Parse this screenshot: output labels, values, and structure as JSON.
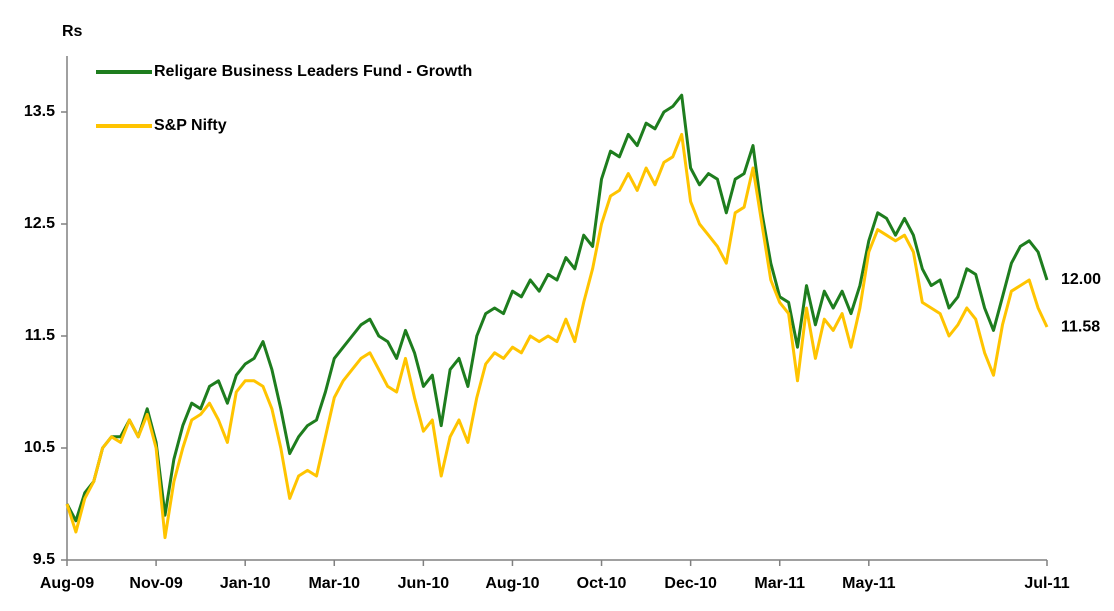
{
  "chart_data": {
    "type": "line",
    "ylabel": "Rs",
    "x": [
      0,
      1,
      2,
      3,
      4,
      5,
      6,
      7,
      8,
      9,
      10,
      11,
      12,
      13,
      14,
      15,
      16,
      17,
      18,
      19,
      20,
      21,
      22,
      23,
      24,
      25,
      26,
      27,
      28,
      29,
      30,
      31,
      32,
      33,
      34,
      35,
      36,
      37,
      38,
      39,
      40,
      41,
      42,
      43,
      44,
      45,
      46,
      47,
      48,
      49,
      50,
      51,
      52,
      53,
      54,
      55,
      56,
      57,
      58,
      59,
      60,
      61,
      62,
      63,
      64,
      65,
      66,
      67,
      68,
      69,
      70,
      71,
      72,
      73,
      74,
      75,
      76,
      77,
      78,
      79,
      80,
      81,
      82,
      83,
      84,
      85,
      86,
      87,
      88,
      89,
      90,
      91,
      92,
      93,
      94,
      95,
      96,
      97,
      98,
      99,
      100,
      101,
      102,
      103,
      104,
      105,
      106,
      107,
      108,
      109,
      110
    ],
    "xlim": [
      0,
      110
    ],
    "xticks": [
      {
        "value": 0,
        "label": "Aug-09"
      },
      {
        "value": 10,
        "label": "Nov-09"
      },
      {
        "value": 20,
        "label": "Jan-10"
      },
      {
        "value": 30,
        "label": "Mar-10"
      },
      {
        "value": 40,
        "label": "Jun-10"
      },
      {
        "value": 50,
        "label": "Aug-10"
      },
      {
        "value": 60,
        "label": "Oct-10"
      },
      {
        "value": 70,
        "label": "Dec-10"
      },
      {
        "value": 80,
        "label": "Mar-11"
      },
      {
        "value": 90,
        "label": "May-11"
      },
      {
        "value": 110,
        "label": "Jul-11"
      }
    ],
    "ylim": [
      9.5,
      14.0
    ],
    "yticks": [
      9.5,
      10.5,
      11.5,
      12.5,
      13.5
    ],
    "grid": false,
    "legend": "upper left",
    "series": [
      {
        "name": "Religare Business Leaders Fund - Growth",
        "color": "#1e7d1e",
        "values": [
          10.0,
          9.85,
          10.1,
          10.2,
          10.5,
          10.6,
          10.6,
          10.75,
          10.6,
          10.85,
          10.55,
          9.9,
          10.4,
          10.7,
          10.9,
          10.85,
          11.05,
          11.1,
          10.9,
          11.15,
          11.25,
          11.3,
          11.45,
          11.2,
          10.85,
          10.45,
          10.6,
          10.7,
          10.75,
          11.0,
          11.3,
          11.4,
          11.5,
          11.6,
          11.65,
          11.5,
          11.45,
          11.3,
          11.55,
          11.35,
          11.05,
          11.15,
          10.7,
          11.2,
          11.3,
          11.05,
          11.5,
          11.7,
          11.75,
          11.7,
          11.9,
          11.85,
          12.0,
          11.9,
          12.05,
          12.0,
          12.2,
          12.1,
          12.4,
          12.3,
          12.9,
          13.15,
          13.1,
          13.3,
          13.2,
          13.4,
          13.35,
          13.5,
          13.55,
          13.65,
          13.0,
          12.85,
          12.95,
          12.9,
          12.6,
          12.9,
          12.95,
          13.2,
          12.6,
          12.15,
          11.85,
          11.8,
          11.4,
          11.95,
          11.6,
          11.9,
          11.75,
          11.9,
          11.7,
          11.95,
          12.35,
          12.6,
          12.55,
          12.4,
          12.55,
          12.4,
          12.1,
          11.95,
          12.0,
          11.75,
          11.85,
          12.1,
          12.05,
          11.75,
          11.55,
          11.85,
          12.15,
          12.3,
          12.35,
          12.25,
          12.0
        ],
        "value_labels": [
          null,
          null,
          null,
          null,
          null,
          null,
          null,
          null,
          null,
          null,
          null,
          null,
          null,
          null,
          null,
          null,
          null,
          null,
          null,
          null,
          null,
          null,
          null,
          null,
          null,
          null,
          null,
          null,
          null,
          null,
          null,
          null,
          null,
          null,
          null,
          null,
          null,
          null,
          null,
          null,
          null,
          null,
          null,
          null,
          null,
          null,
          null,
          null,
          null,
          null,
          null,
          null,
          null,
          null,
          null,
          null,
          null,
          null,
          null,
          null,
          null,
          null,
          null,
          null,
          null,
          null,
          null,
          null,
          null,
          null,
          null,
          null,
          null,
          null,
          null,
          null,
          null,
          null,
          null,
          null,
          null,
          null,
          null,
          null,
          null,
          null,
          null,
          null,
          null,
          null,
          null,
          null,
          null,
          null,
          null,
          null,
          null,
          null,
          null,
          null,
          null,
          null,
          null,
          null,
          null,
          null,
          null,
          null,
          null,
          null,
          "12.00"
        ]
      },
      {
        "name": "S&P Nifty",
        "color": "#ffc400",
        "values": [
          10.0,
          9.75,
          10.05,
          10.2,
          10.5,
          10.6,
          10.55,
          10.75,
          10.6,
          10.8,
          10.5,
          9.7,
          10.2,
          10.5,
          10.75,
          10.8,
          10.9,
          10.75,
          10.55,
          11.0,
          11.1,
          11.1,
          11.05,
          10.85,
          10.5,
          10.05,
          10.25,
          10.3,
          10.25,
          10.6,
          10.95,
          11.1,
          11.2,
          11.3,
          11.35,
          11.2,
          11.05,
          11.0,
          11.3,
          10.95,
          10.65,
          10.75,
          10.25,
          10.6,
          10.75,
          10.55,
          10.95,
          11.25,
          11.35,
          11.3,
          11.4,
          11.35,
          11.5,
          11.45,
          11.5,
          11.45,
          11.65,
          11.45,
          11.8,
          12.1,
          12.5,
          12.75,
          12.8,
          12.95,
          12.8,
          13.0,
          12.85,
          13.05,
          13.1,
          13.3,
          12.7,
          12.5,
          12.4,
          12.3,
          12.15,
          12.6,
          12.65,
          13.0,
          12.5,
          12.0,
          11.8,
          11.7,
          11.1,
          11.75,
          11.3,
          11.65,
          11.55,
          11.7,
          11.4,
          11.75,
          12.25,
          12.45,
          12.4,
          12.35,
          12.4,
          12.25,
          11.8,
          11.75,
          11.7,
          11.5,
          11.6,
          11.75,
          11.65,
          11.35,
          11.15,
          11.6,
          11.9,
          11.95,
          12.0,
          11.75,
          11.58
        ],
        "value_labels": [
          null,
          null,
          null,
          null,
          null,
          null,
          null,
          null,
          null,
          null,
          null,
          null,
          null,
          null,
          null,
          null,
          null,
          null,
          null,
          null,
          null,
          null,
          null,
          null,
          null,
          null,
          null,
          null,
          null,
          null,
          null,
          null,
          null,
          null,
          null,
          null,
          null,
          null,
          null,
          null,
          null,
          null,
          null,
          null,
          null,
          null,
          null,
          null,
          null,
          null,
          null,
          null,
          null,
          null,
          null,
          null,
          null,
          null,
          null,
          null,
          null,
          null,
          null,
          null,
          null,
          null,
          null,
          null,
          null,
          null,
          null,
          null,
          null,
          null,
          null,
          null,
          null,
          null,
          null,
          null,
          null,
          null,
          null,
          null,
          null,
          null,
          null,
          null,
          null,
          null,
          null,
          null,
          null,
          null,
          null,
          null,
          null,
          null,
          null,
          null,
          null,
          null,
          null,
          null,
          null,
          null,
          null,
          null,
          null,
          null,
          "11.58"
        ]
      }
    ]
  }
}
